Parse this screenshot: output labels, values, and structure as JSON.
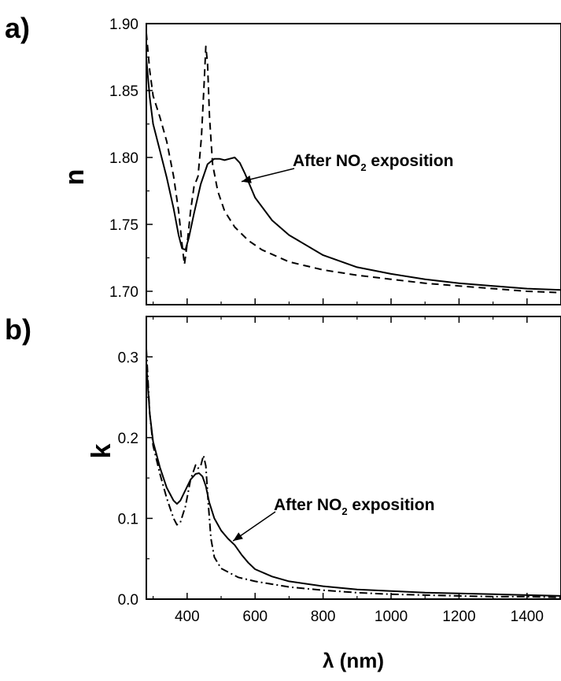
{
  "chart_data": [
    {
      "panel": "a)",
      "type": "line",
      "ylabel": "n",
      "xlim": [
        280,
        1500
      ],
      "ylim": [
        1.69,
        1.9
      ],
      "yticks": [
        1.7,
        1.75,
        1.8,
        1.85,
        1.9
      ],
      "ytick_labels": [
        "1.70",
        "1.75",
        "1.80",
        "1.85",
        "1.90"
      ],
      "xticks": [
        400,
        600,
        800,
        1000,
        1200,
        1400
      ],
      "annotation": {
        "text": "After NO",
        "sub": "2",
        "tail": " exposition",
        "points_to": {
          "x": 560,
          "y": 1.782
        }
      },
      "series": [
        {
          "style": "dashed",
          "x": [
            280,
            290,
            300,
            320,
            340,
            360,
            375,
            385,
            392,
            400,
            410,
            420,
            432,
            442,
            450,
            455,
            460,
            466,
            475,
            490,
            510,
            540,
            580,
            620,
            700,
            800,
            900,
            1000,
            1100,
            1200,
            1300,
            1400,
            1500
          ],
          "y": [
            1.893,
            1.865,
            1.846,
            1.83,
            1.812,
            1.786,
            1.76,
            1.735,
            1.72,
            1.735,
            1.76,
            1.778,
            1.786,
            1.815,
            1.855,
            1.883,
            1.87,
            1.83,
            1.795,
            1.775,
            1.76,
            1.748,
            1.738,
            1.731,
            1.722,
            1.716,
            1.712,
            1.709,
            1.706,
            1.704,
            1.702,
            1.7,
            1.699
          ]
        },
        {
          "style": "solid",
          "x": [
            280,
            290,
            300,
            320,
            340,
            360,
            375,
            385,
            395,
            405,
            420,
            440,
            460,
            480,
            495,
            510,
            525,
            540,
            555,
            570,
            600,
            650,
            700,
            800,
            900,
            1000,
            1100,
            1200,
            1300,
            1400,
            1500
          ],
          "y": [
            1.874,
            1.845,
            1.825,
            1.805,
            1.785,
            1.762,
            1.742,
            1.732,
            1.731,
            1.74,
            1.758,
            1.78,
            1.795,
            1.799,
            1.799,
            1.798,
            1.799,
            1.8,
            1.796,
            1.788,
            1.77,
            1.753,
            1.742,
            1.727,
            1.718,
            1.713,
            1.709,
            1.706,
            1.704,
            1.702,
            1.701
          ]
        }
      ]
    },
    {
      "panel": "b)",
      "type": "line",
      "xlabel": "λ (nm)",
      "ylabel": "k",
      "xlim": [
        280,
        1500
      ],
      "ylim": [
        0,
        0.35
      ],
      "yticks": [
        0.0,
        0.1,
        0.2,
        0.3
      ],
      "ytick_labels": [
        "0.0",
        "0.1",
        "0.2",
        "0.3"
      ],
      "xticks": [
        400,
        600,
        800,
        1000,
        1200,
        1400
      ],
      "xtick_labels": [
        "400",
        "600",
        "800",
        "1000",
        "1200",
        "1400"
      ],
      "annotation": {
        "text": "After NO",
        "sub": "2",
        "tail": " exposition",
        "points_to": {
          "x": 535,
          "y": 0.072
        }
      },
      "series": [
        {
          "style": "dashdot",
          "x": [
            280,
            290,
            300,
            320,
            340,
            360,
            370,
            380,
            395,
            410,
            425,
            432,
            440,
            448,
            455,
            462,
            470,
            480,
            500,
            550,
            600,
            700,
            800,
            900,
            1000,
            1100,
            1200,
            1300,
            1400,
            1500
          ],
          "y": [
            0.31,
            0.23,
            0.19,
            0.155,
            0.125,
            0.1,
            0.092,
            0.095,
            0.115,
            0.148,
            0.166,
            0.162,
            0.165,
            0.178,
            0.165,
            0.12,
            0.075,
            0.052,
            0.038,
            0.027,
            0.022,
            0.015,
            0.011,
            0.008,
            0.006,
            0.005,
            0.004,
            0.003,
            0.003,
            0.002
          ]
        },
        {
          "style": "solid",
          "x": [
            280,
            290,
            300,
            320,
            340,
            360,
            370,
            380,
            395,
            410,
            425,
            435,
            445,
            455,
            465,
            480,
            500,
            520,
            540,
            560,
            580,
            600,
            650,
            700,
            800,
            900,
            1000,
            1100,
            1200,
            1300,
            1400,
            1500
          ],
          "y": [
            0.292,
            0.23,
            0.195,
            0.163,
            0.138,
            0.122,
            0.118,
            0.122,
            0.135,
            0.148,
            0.155,
            0.156,
            0.152,
            0.14,
            0.12,
            0.1,
            0.085,
            0.075,
            0.067,
            0.055,
            0.045,
            0.037,
            0.028,
            0.022,
            0.016,
            0.012,
            0.01,
            0.008,
            0.007,
            0.006,
            0.005,
            0.004
          ]
        }
      ]
    }
  ]
}
